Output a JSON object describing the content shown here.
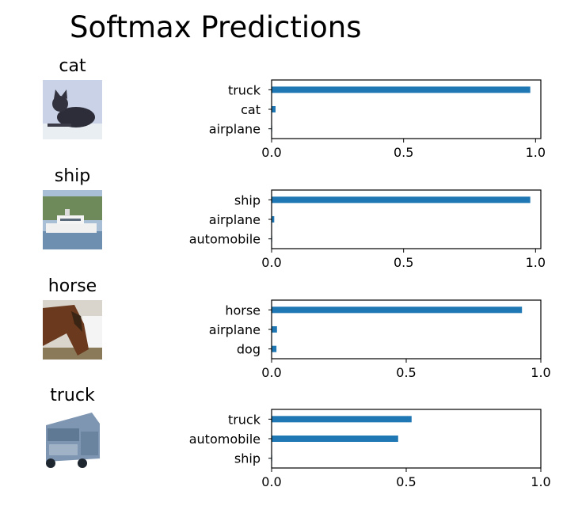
{
  "figure": {
    "title": "Softmax Predictions"
  },
  "colors": {
    "bar": "#1f77b4"
  },
  "chart_data": [
    {
      "type": "bar",
      "orientation": "horizontal",
      "image_label": "cat",
      "image_icon": "cat-photo-icon",
      "categories": [
        "truck",
        "cat",
        "airplane"
      ],
      "values": [
        0.98,
        0.015,
        0.002
      ],
      "xlim": [
        0,
        1.02
      ],
      "xticks": [
        0.0,
        0.5,
        1.0
      ],
      "xtick_labels": [
        "0.0",
        "0.5",
        "1.0"
      ]
    },
    {
      "type": "bar",
      "orientation": "horizontal",
      "image_label": "ship",
      "image_icon": "ship-photo-icon",
      "categories": [
        "ship",
        "airplane",
        "automobile"
      ],
      "values": [
        0.98,
        0.01,
        0.002
      ],
      "xlim": [
        0,
        1.02
      ],
      "xticks": [
        0.0,
        0.5,
        1.0
      ],
      "xtick_labels": [
        "0.0",
        "0.5",
        "1.0"
      ]
    },
    {
      "type": "bar",
      "orientation": "horizontal",
      "image_label": "horse",
      "image_icon": "horse-photo-icon",
      "categories": [
        "horse",
        "airplane",
        "dog"
      ],
      "values": [
        0.93,
        0.02,
        0.018
      ],
      "xlim": [
        0,
        1.0
      ],
      "xticks": [
        0.0,
        0.5,
        1.0
      ],
      "xtick_labels": [
        "0.0",
        "0.5",
        "1.0"
      ]
    },
    {
      "type": "bar",
      "orientation": "horizontal",
      "image_label": "truck",
      "image_icon": "truck-photo-icon",
      "categories": [
        "truck",
        "automobile",
        "ship"
      ],
      "values": [
        0.52,
        0.47,
        0.002
      ],
      "xlim": [
        0,
        1.0
      ],
      "xticks": [
        0.0,
        0.5,
        1.0
      ],
      "xtick_labels": [
        "0.0",
        "0.5",
        "1.0"
      ]
    }
  ]
}
